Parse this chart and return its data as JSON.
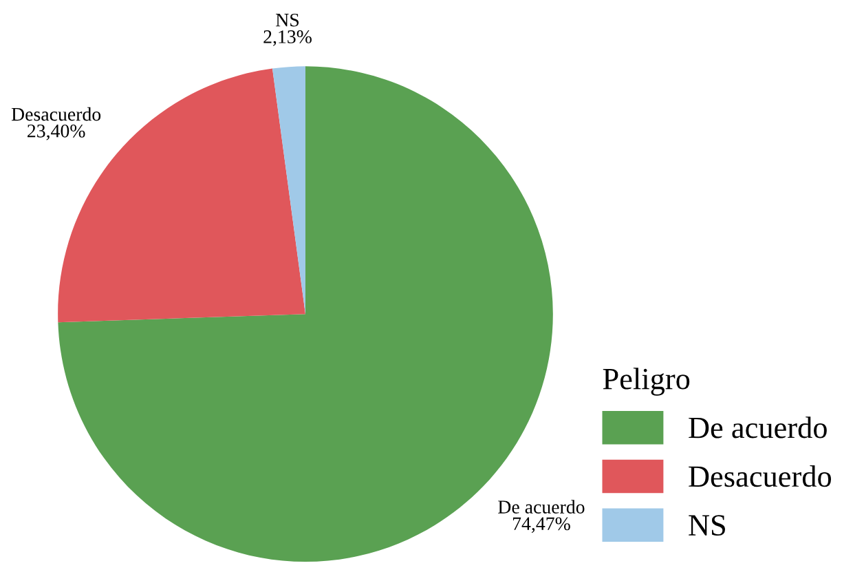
{
  "chart_data": {
    "type": "pie",
    "legend_title": "Peligro",
    "categories": [
      "De acuerdo",
      "Desacuerdo",
      "NS"
    ],
    "values": [
      74.47,
      23.4,
      2.13
    ],
    "colors": [
      "#5aa152",
      "#e0575b",
      "#a0c9e8"
    ],
    "value_labels": [
      "74,47%",
      "23,40%",
      "2,13%"
    ],
    "legend": "bottom right"
  }
}
